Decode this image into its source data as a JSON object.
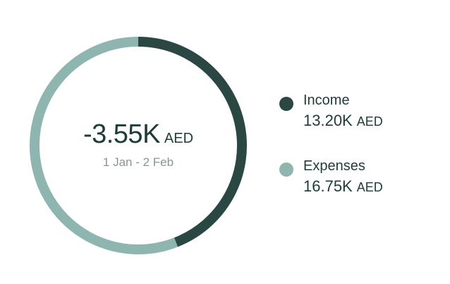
{
  "chart_data": {
    "type": "pie",
    "categories": [
      "Income",
      "Expenses"
    ],
    "values": [
      13.2,
      16.75
    ],
    "unit": "AED",
    "colors": [
      "#2a4744",
      "#8fb5b1"
    ],
    "center_value": "-3.55K",
    "center_unit": "AED",
    "center_caption": "1 Jan - 2 Feb",
    "legend": [
      {
        "label": "Income",
        "amount": "13.20K",
        "unit": "AED",
        "color": "#2a4744"
      },
      {
        "label": "Expenses",
        "amount": "16.75K",
        "unit": "AED",
        "color": "#8fb5b1"
      }
    ]
  }
}
